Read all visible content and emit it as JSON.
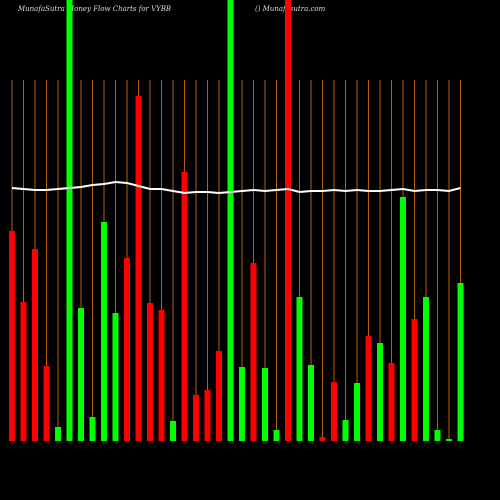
{
  "chart_data": {
    "type": "bar",
    "title": "MunafaSutra  Money Flow  Charts for VYBB",
    "subtitle": "() Munafasutra.com",
    "categories": [
      null,
      null,
      null,
      null,
      null,
      null,
      null,
      null,
      null,
      null,
      null,
      null,
      null,
      null,
      null,
      null,
      null,
      null,
      null,
      null,
      null,
      null,
      null,
      null,
      null,
      null,
      null,
      null,
      null,
      null,
      null,
      null,
      null,
      null,
      null,
      null,
      null,
      null,
      null,
      null
    ],
    "values": [
      210,
      139,
      192,
      75,
      14,
      441,
      133,
      24,
      219,
      128,
      183,
      345,
      138,
      131,
      20,
      269,
      46,
      51,
      90,
      441,
      74,
      178,
      73,
      11,
      441,
      144,
      76,
      4,
      59,
      21,
      58,
      105,
      98,
      78,
      244,
      122,
      144,
      11,
      2,
      158
    ],
    "colors": [
      "#ff0000",
      "#ff0000",
      "#ff0000",
      "#ff0000",
      "#00ff00",
      "#00ff00",
      "#00ff00",
      "#00ff00",
      "#00ff00",
      "#00ff00",
      "#ff0000",
      "#ff0000",
      "#ff0000",
      "#ff0000",
      "#00ff00",
      "#ff0000",
      "#ff0000",
      "#ff0000",
      "#ff0000",
      "#00ff00",
      "#00ff00",
      "#ff0000",
      "#00ff00",
      "#00ff00",
      "#ff0000",
      "#00ff00",
      "#00ff00",
      "#ff0000",
      "#ff0000",
      "#00ff00",
      "#00ff00",
      "#ff0000",
      "#00ff00",
      "#ff0000",
      "#00ff00",
      "#ff0000",
      "#00ff00",
      "#00ff00",
      "#00ff00",
      "#00ff00"
    ],
    "line": {
      "color": "#ffffff",
      "values": [
        253,
        252,
        251,
        251,
        252,
        253,
        254,
        256,
        257,
        259,
        258,
        255,
        252,
        252,
        250,
        248,
        249,
        249,
        248,
        249,
        250,
        251,
        250,
        251,
        252,
        249,
        250,
        250,
        251,
        250,
        251,
        250,
        250,
        251,
        252,
        250,
        251,
        251,
        250,
        253
      ]
    },
    "gridline_color": "#b8610a",
    "ylim": [
      0,
      441
    ]
  }
}
